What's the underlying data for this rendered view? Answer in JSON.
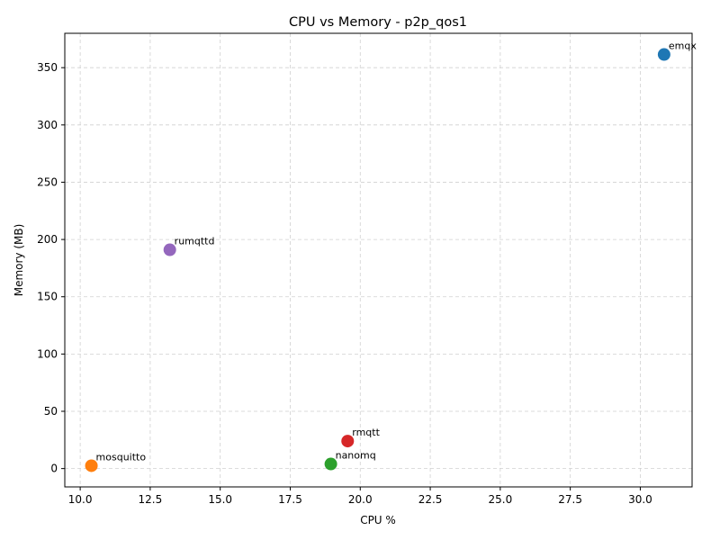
{
  "chart_data": {
    "type": "scatter",
    "title": "CPU vs Memory - p2p_qos1",
    "xlabel": "CPU %",
    "ylabel": "Memory (MB)",
    "xlim": [
      9.45,
      31.85
    ],
    "ylim": [
      -16,
      380
    ],
    "xticks": [
      10.0,
      12.5,
      15.0,
      17.5,
      20.0,
      22.5,
      25.0,
      27.5,
      30.0
    ],
    "xtick_labels": [
      "10.0",
      "12.5",
      "15.0",
      "17.5",
      "20.0",
      "22.5",
      "25.0",
      "27.5",
      "30.0"
    ],
    "yticks": [
      0,
      50,
      100,
      150,
      200,
      250,
      300,
      350
    ],
    "ytick_labels": [
      "0",
      "50",
      "100",
      "150",
      "200",
      "250",
      "300",
      "350"
    ],
    "grid": true,
    "points": [
      {
        "label": "emqx",
        "x": 30.85,
        "y": 361.5,
        "color": "#1f77b4"
      },
      {
        "label": "mosquitto",
        "x": 10.4,
        "y": 2.5,
        "color": "#ff7f0e"
      },
      {
        "label": "nanomq",
        "x": 18.95,
        "y": 4.0,
        "color": "#2ca02c"
      },
      {
        "label": "rmqtt",
        "x": 19.55,
        "y": 24.0,
        "color": "#d62728"
      },
      {
        "label": "rumqttd",
        "x": 13.2,
        "y": 191.0,
        "color": "#9467bd"
      }
    ]
  }
}
